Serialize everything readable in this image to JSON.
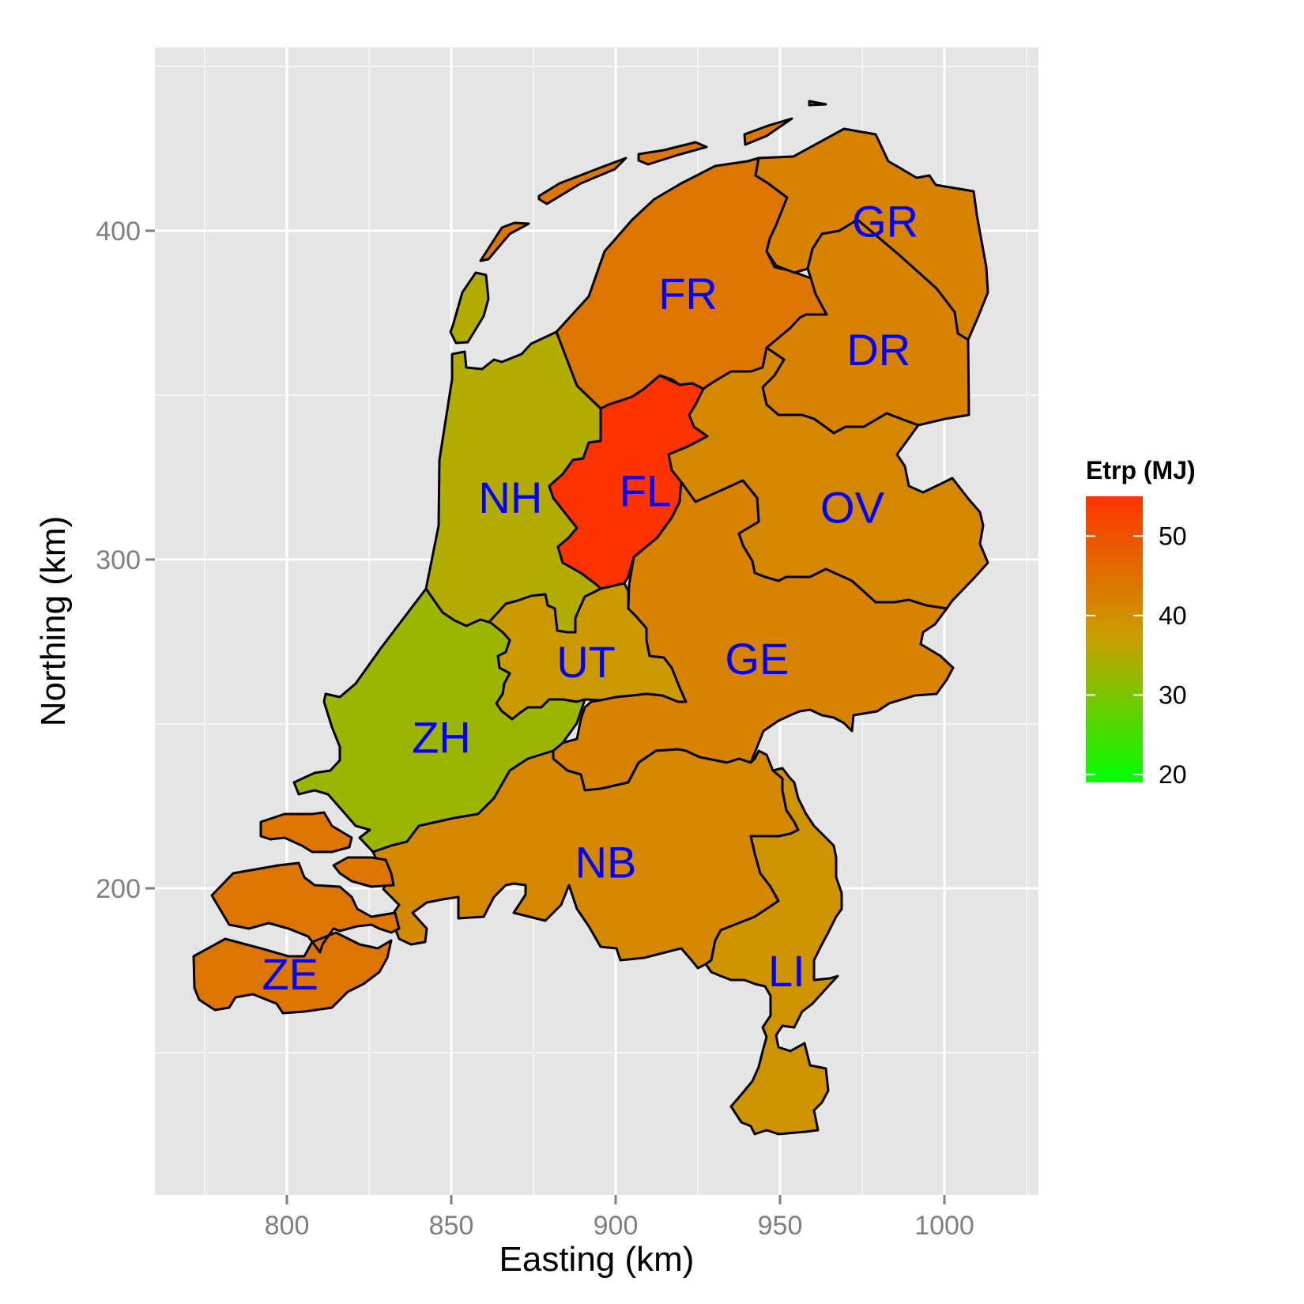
{
  "chart_data": {
    "type": "choropleth-map",
    "xlabel": "Easting (km)",
    "ylabel": "Northing (km)",
    "x_ticks": [
      800,
      850,
      900,
      950,
      1000
    ],
    "y_ticks": [
      200,
      300,
      400
    ],
    "xlim": [
      760,
      1028
    ],
    "ylim": [
      112,
      465
    ],
    "grid": true,
    "legend": {
      "title": "Etrp (MJ)",
      "placement": "right",
      "ticks": [
        20,
        30,
        40,
        50
      ],
      "range": [
        19,
        55
      ],
      "low_color": "#00ff00",
      "high_color": "#ff3300"
    },
    "regions": [
      {
        "code": "GR",
        "value": 42,
        "label_x": 982,
        "label_y": 403
      },
      {
        "code": "FR",
        "value": 44,
        "label_x": 922,
        "label_y": 381
      },
      {
        "code": "DR",
        "value": 42,
        "label_x": 980,
        "label_y": 364
      },
      {
        "code": "NH",
        "value": 35,
        "label_x": 868,
        "label_y": 319
      },
      {
        "code": "FL",
        "value": 55,
        "label_x": 909,
        "label_y": 321
      },
      {
        "code": "OV",
        "value": 41,
        "label_x": 972,
        "label_y": 316
      },
      {
        "code": "UT",
        "value": 38,
        "label_x": 891,
        "label_y": 269
      },
      {
        "code": "GE",
        "value": 42,
        "label_x": 943,
        "label_y": 270
      },
      {
        "code": "ZH",
        "value": 33,
        "label_x": 847,
        "label_y": 246
      },
      {
        "code": "NB",
        "value": 41,
        "label_x": 897,
        "label_y": 208
      },
      {
        "code": "ZE",
        "value": 44,
        "label_x": 801,
        "label_y": 174
      },
      {
        "code": "LI",
        "value": 39,
        "label_x": 952,
        "label_y": 175
      }
    ]
  }
}
